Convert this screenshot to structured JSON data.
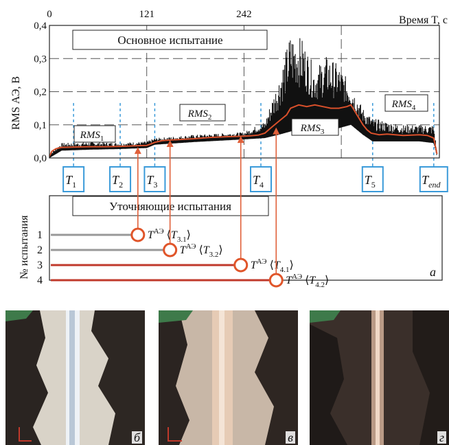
{
  "chart_data": {
    "type": "line",
    "title_box": "Основное испытание",
    "xlabel": "Время T, с",
    "ylabel": "RMS АЭ, В",
    "x_ticks": [
      "0",
      "121",
      "242"
    ],
    "x_tick_values": [
      0,
      121,
      242
    ],
    "y_ticks": [
      "0,0",
      "0,1",
      "0,2",
      "0,3",
      "0,4"
    ],
    "y_tick_values": [
      0,
      0.1,
      0.2,
      0.3,
      0.4
    ],
    "xlim": [
      0,
      485
    ],
    "ylim": [
      0,
      0.4
    ],
    "grid": "dashed",
    "stage_labels": [
      "RMS1",
      "RMS2",
      "RMS3",
      "RMS4"
    ],
    "markers": [
      {
        "label": "T1",
        "x": 30
      },
      {
        "label": "T2",
        "x": 88
      },
      {
        "label": "T3",
        "x": 131
      },
      {
        "label": "T4",
        "x": 263
      },
      {
        "label": "T5",
        "x": 402
      },
      {
        "label": "Tend",
        "x": 478
      }
    ],
    "series": [
      {
        "color": "#d9502b",
        "x": [
          0,
          3,
          8,
          15,
          30,
          50,
          70,
          88,
          100,
          110,
          121,
          126,
          131,
          140,
          150,
          165,
          180,
          200,
          220,
          242,
          250,
          260,
          268,
          275,
          285,
          290,
          295,
          300,
          310,
          320,
          330,
          340,
          350,
          360,
          370,
          375,
          380,
          385,
          390,
          395,
          400,
          410,
          420,
          440,
          460,
          470,
          478,
          482
        ],
        "values": [
          0.005,
          0.02,
          0.028,
          0.032,
          0.033,
          0.034,
          0.034,
          0.035,
          0.036,
          0.037,
          0.038,
          0.042,
          0.047,
          0.052,
          0.054,
          0.056,
          0.058,
          0.062,
          0.064,
          0.066,
          0.067,
          0.069,
          0.075,
          0.09,
          0.11,
          0.12,
          0.13,
          0.15,
          0.16,
          0.155,
          0.16,
          0.155,
          0.15,
          0.15,
          0.155,
          0.16,
          0.14,
          0.12,
          0.1,
          0.085,
          0.075,
          0.07,
          0.072,
          0.068,
          0.07,
          0.068,
          0.06,
          0.012
        ]
      },
      {
        "color": "#111111",
        "style": "noisy-envelope",
        "x": [
          0,
          15,
          50,
          88,
          121,
          131,
          180,
          242,
          268,
          285,
          300,
          315,
          330,
          345,
          360,
          375,
          390,
          402,
          420,
          440,
          460,
          478,
          482
        ],
        "upper": [
          0.012,
          0.045,
          0.048,
          0.046,
          0.05,
          0.06,
          0.07,
          0.078,
          0.11,
          0.24,
          0.38,
          0.36,
          0.27,
          0.31,
          0.28,
          0.22,
          0.15,
          0.12,
          0.11,
          0.1,
          0.1,
          0.1,
          0.02
        ],
        "lower": [
          0.0,
          0.022,
          0.025,
          0.027,
          0.03,
          0.04,
          0.048,
          0.056,
          0.06,
          0.07,
          0.08,
          0.09,
          0.09,
          0.085,
          0.09,
          0.1,
          0.07,
          0.05,
          0.05,
          0.05,
          0.05,
          0.045,
          0.005
        ]
      }
    ],
    "subplot": {
      "title_box": "Уточняющие испытания",
      "ylabel": "№ испытания",
      "panel_letter": "а",
      "tests": [
        {
          "num": "1",
          "label": "TАЭ ⟨T3.1⟩",
          "x": 110,
          "color": "#999999",
          "arrow_to_y": 0.033
        },
        {
          "num": "2",
          "label": "TАЭ ⟨T3.2⟩",
          "x": 150,
          "color": "#999999",
          "arrow_to_y": 0.054
        },
        {
          "num": "3",
          "label": "TАЭ ⟨T4.1⟩",
          "x": 238,
          "color": "#c0392b",
          "arrow_to_y": 0.066
        },
        {
          "num": "4",
          "label": "TАЭ ⟨T4.2⟩",
          "x": 282,
          "color": "#c0392b",
          "arrow_to_y": 0.092
        }
      ]
    }
  },
  "photos": [
    {
      "letter": "б"
    },
    {
      "letter": "в"
    },
    {
      "letter": "г"
    }
  ]
}
